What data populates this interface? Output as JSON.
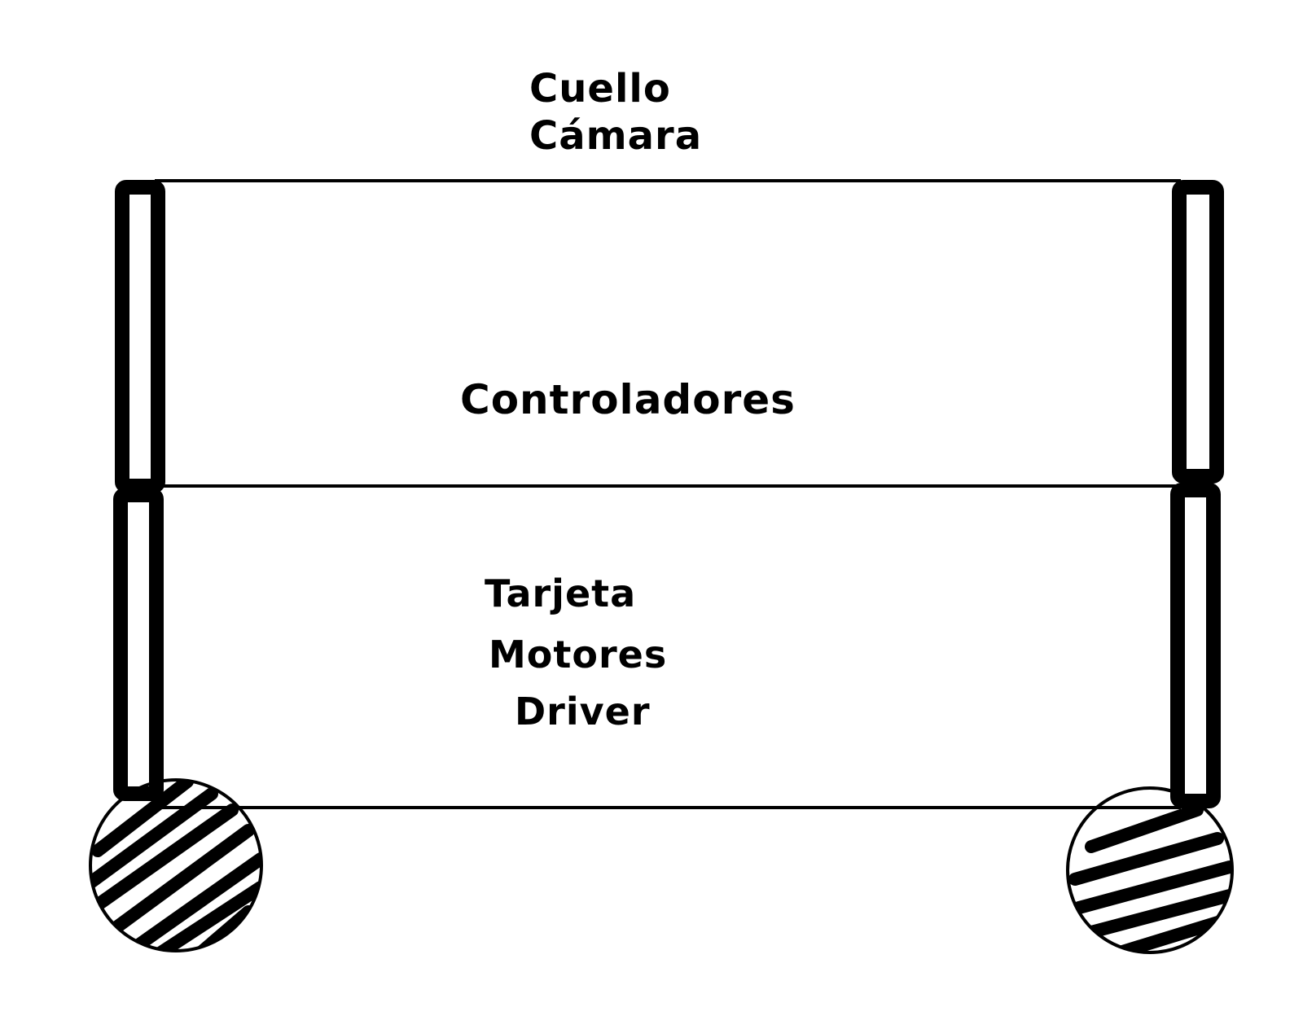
{
  "diagram": {
    "top_label": {
      "line1": "Cuello",
      "line2": "Cámara"
    },
    "upper_compartment": {
      "label": "Controladores"
    },
    "lower_compartment": {
      "line1": "Tarjeta",
      "line2": "Motores",
      "line3": "Driver"
    }
  },
  "colors": {
    "stroke": "#000000",
    "background": "#ffffff"
  }
}
